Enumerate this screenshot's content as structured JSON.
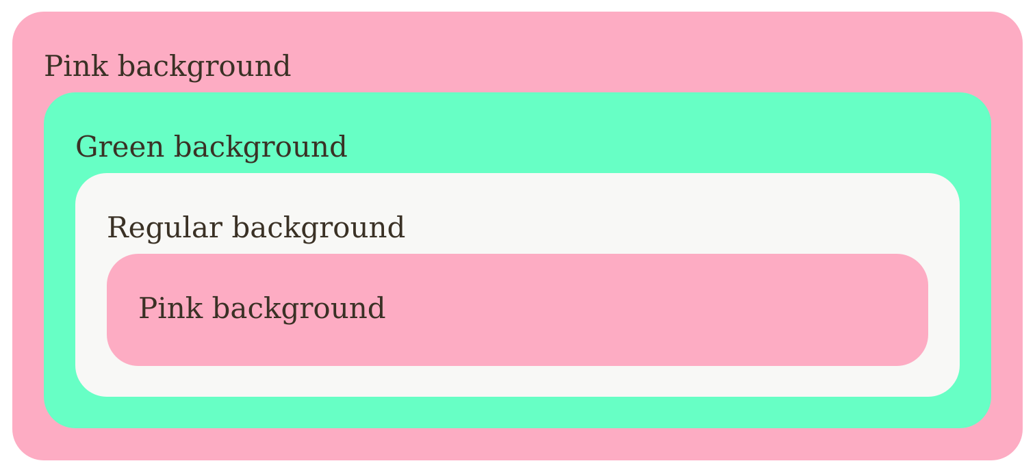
{
  "outer": {
    "label": "Pink background",
    "color": "#fdacc3"
  },
  "green": {
    "label": "Green background",
    "color": "#67ffc5"
  },
  "regular": {
    "label": "Regular background",
    "color": "#f8f8f6"
  },
  "inner": {
    "label": "Pink background",
    "color": "#fdacc3"
  }
}
